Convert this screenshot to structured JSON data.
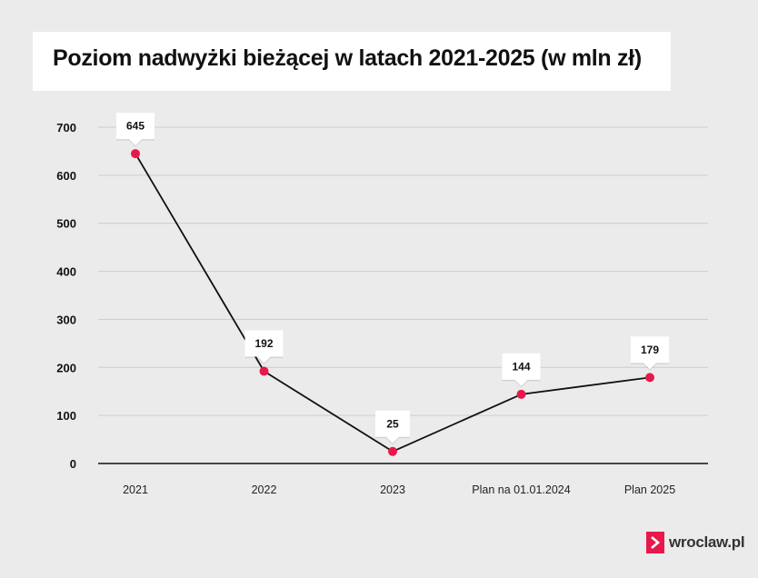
{
  "title": "Poziom nadwyżki bieżącej w latach 2021-2025 (w mln zł)",
  "brand": {
    "name": "wroclaw.pl",
    "color": "#e8184c"
  },
  "colors": {
    "background": "#ebebeb",
    "line": "#111111",
    "point": "#e8184c",
    "grid": "#cccccc"
  },
  "chart_data": {
    "type": "line",
    "title": "Poziom nadwyżki bieżącej w latach 2021-2025 (w mln zł)",
    "xlabel": "",
    "ylabel": "",
    "categories": [
      "2021",
      "2022",
      "2023",
      "Plan na 01.01.2024",
      "Plan 2025"
    ],
    "series": [
      {
        "values": [
          645,
          192,
          25,
          144,
          179
        ],
        "data_labels": [
          "645",
          "192",
          "25",
          "144",
          "179"
        ]
      }
    ],
    "yticks": [
      0,
      100,
      200,
      300,
      400,
      500,
      600,
      700
    ],
    "ylim": [
      0,
      700
    ],
    "grid": true,
    "legend": "none"
  }
}
